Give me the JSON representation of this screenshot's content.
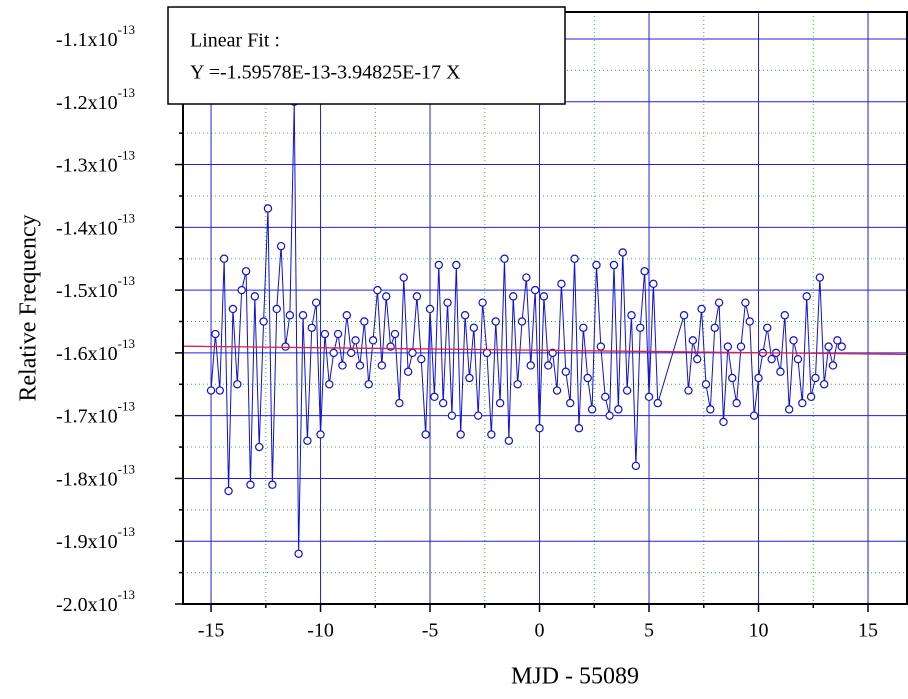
{
  "chart_data": {
    "type": "scatter-line",
    "color": "#1010d0",
    "x_label": "MJD - 55089",
    "y_label": "Relative Frequency",
    "annotation": {
      "title": "Linear Fit :",
      "text": "Y =-1.59578E-13-3.94825E-17 X"
    },
    "fit": {
      "intercept": -1.59578e-13,
      "slope": -3.94825e-17,
      "color": "#e02040"
    },
    "xlim": [
      -16.28,
      16.78
    ],
    "ylim": [
      -2e-13,
      -1.057e-13
    ],
    "xticks": [
      -15,
      -10,
      -5,
      0,
      5,
      10,
      15
    ],
    "xminorticks": [
      -12.5,
      -7.5,
      -2.5,
      2.5,
      7.5,
      12.5
    ],
    "yticks": [
      {
        "value": -1.1e-13,
        "label": "-1.1x10",
        "exponent": "-13"
      },
      {
        "value": -1.2e-13,
        "label": "-1.2x10",
        "exponent": "-13"
      },
      {
        "value": -1.3e-13,
        "label": "-1.3x10",
        "exponent": "-13"
      },
      {
        "value": -1.4e-13,
        "label": "-1.4x10",
        "exponent": "-13"
      },
      {
        "value": -1.5e-13,
        "label": "-1.5x10",
        "exponent": "-13"
      },
      {
        "value": -1.6e-13,
        "label": "-1.6x10",
        "exponent": "-13"
      },
      {
        "value": -1.7e-13,
        "label": "-1.7x10",
        "exponent": "-13"
      },
      {
        "value": -1.8e-13,
        "label": "-1.8x10",
        "exponent": "-13"
      },
      {
        "value": -1.9e-13,
        "label": "-1.9x10",
        "exponent": "-13"
      },
      {
        "value": -2e-13,
        "label": "-2.0x10",
        "exponent": "-13"
      }
    ],
    "yminorticks": [
      -1.15e-13,
      -1.25e-13,
      -1.35e-13,
      -1.45e-13,
      -1.55e-13,
      -1.65e-13,
      -1.75e-13,
      -1.85e-13,
      -1.95e-13
    ],
    "grid": true,
    "x": [
      -15.0,
      -14.8,
      -14.6,
      -14.4,
      -14.2,
      -14.0,
      -13.8,
      -13.6,
      -13.4,
      -13.2,
      -13.0,
      -12.8,
      -12.6,
      -12.4,
      -12.2,
      -12.0,
      -11.8,
      -11.6,
      -11.4,
      -11.2,
      -11.0,
      -10.8,
      -10.6,
      -10.4,
      -10.2,
      -10.0,
      -9.8,
      -9.6,
      -9.4,
      -9.2,
      -9.0,
      -8.8,
      -8.6,
      -8.4,
      -8.2,
      -8.0,
      -7.8,
      -7.6,
      -7.4,
      -7.2,
      -7.0,
      -6.8,
      -6.6,
      -6.4,
      -6.2,
      -6.0,
      -5.8,
      -5.6,
      -5.4,
      -5.2,
      -5.0,
      -4.8,
      -4.6,
      -4.4,
      -4.2,
      -4.0,
      -3.8,
      -3.6,
      -3.4,
      -3.2,
      -3.0,
      -2.8,
      -2.6,
      -2.4,
      -2.2,
      -2.0,
      -1.8,
      -1.6,
      -1.4,
      -1.2,
      -1.0,
      -0.8,
      -0.6,
      -0.4,
      -0.2,
      0.0,
      0.2,
      0.4,
      0.6,
      0.8,
      1.0,
      1.2,
      1.4,
      1.6,
      1.8,
      2.0,
      2.2,
      2.4,
      2.6,
      2.8,
      3.0,
      3.2,
      3.4,
      3.6,
      3.8,
      4.0,
      4.2,
      4.4,
      4.6,
      4.8,
      5.0,
      5.2,
      5.4,
      6.6,
      6.8,
      7.0,
      7.2,
      7.4,
      7.6,
      7.8,
      8.0,
      8.2,
      8.4,
      8.6,
      8.8,
      9.0,
      9.2,
      9.4,
      9.6,
      9.8,
      10.0,
      10.2,
      10.4,
      10.6,
      10.8,
      11.0,
      11.2,
      11.4,
      11.6,
      11.8,
      12.0,
      12.2,
      12.4,
      12.6,
      12.8,
      13.0,
      13.2,
      13.4,
      13.6,
      13.8
    ],
    "values": [
      -1.66e-13,
      -1.57e-13,
      -1.66e-13,
      -1.45e-13,
      -1.82e-13,
      -1.53e-13,
      -1.65e-13,
      -1.5e-13,
      -1.47e-13,
      -1.81e-13,
      -1.51e-13,
      -1.75e-13,
      -1.55e-13,
      -1.37e-13,
      -1.81e-13,
      -1.53e-13,
      -1.43e-13,
      -1.59e-13,
      -1.54e-13,
      -1.2e-13,
      -1.92e-13,
      -1.54e-13,
      -1.74e-13,
      -1.56e-13,
      -1.52e-13,
      -1.73e-13,
      -1.57e-13,
      -1.65e-13,
      -1.6e-13,
      -1.57e-13,
      -1.62e-13,
      -1.54e-13,
      -1.6e-13,
      -1.58e-13,
      -1.62e-13,
      -1.55e-13,
      -1.65e-13,
      -1.58e-13,
      -1.5e-13,
      -1.62e-13,
      -1.51e-13,
      -1.59e-13,
      -1.57e-13,
      -1.68e-13,
      -1.48e-13,
      -1.63e-13,
      -1.6e-13,
      -1.51e-13,
      -1.61e-13,
      -1.73e-13,
      -1.53e-13,
      -1.67e-13,
      -1.46e-13,
      -1.68e-13,
      -1.52e-13,
      -1.7e-13,
      -1.46e-13,
      -1.73e-13,
      -1.54e-13,
      -1.64e-13,
      -1.56e-13,
      -1.7e-13,
      -1.52e-13,
      -1.6e-13,
      -1.73e-13,
      -1.55e-13,
      -1.68e-13,
      -1.45e-13,
      -1.74e-13,
      -1.51e-13,
      -1.65e-13,
      -1.55e-13,
      -1.48e-13,
      -1.62e-13,
      -1.5e-13,
      -1.72e-13,
      -1.51e-13,
      -1.62e-13,
      -1.6e-13,
      -1.66e-13,
      -1.49e-13,
      -1.63e-13,
      -1.68e-13,
      -1.45e-13,
      -1.72e-13,
      -1.56e-13,
      -1.64e-13,
      -1.69e-13,
      -1.46e-13,
      -1.59e-13,
      -1.67e-13,
      -1.7e-13,
      -1.46e-13,
      -1.69e-13,
      -1.44e-13,
      -1.66e-13,
      -1.54e-13,
      -1.78e-13,
      -1.56e-13,
      -1.47e-13,
      -1.67e-13,
      -1.49e-13,
      -1.68e-13,
      -1.54e-13,
      -1.66e-13,
      -1.58e-13,
      -1.61e-13,
      -1.53e-13,
      -1.65e-13,
      -1.69e-13,
      -1.56e-13,
      -1.52e-13,
      -1.71e-13,
      -1.59e-13,
      -1.64e-13,
      -1.68e-13,
      -1.59e-13,
      -1.52e-13,
      -1.55e-13,
      -1.7e-13,
      -1.64e-13,
      -1.6e-13,
      -1.56e-13,
      -1.61e-13,
      -1.6e-13,
      -1.63e-13,
      -1.54e-13,
      -1.69e-13,
      -1.58e-13,
      -1.61e-13,
      -1.68e-13,
      -1.51e-13,
      -1.67e-13,
      -1.64e-13,
      -1.48e-13,
      -1.65e-13,
      -1.59e-13,
      -1.62e-13,
      -1.58e-13,
      -1.59e-13
    ]
  }
}
